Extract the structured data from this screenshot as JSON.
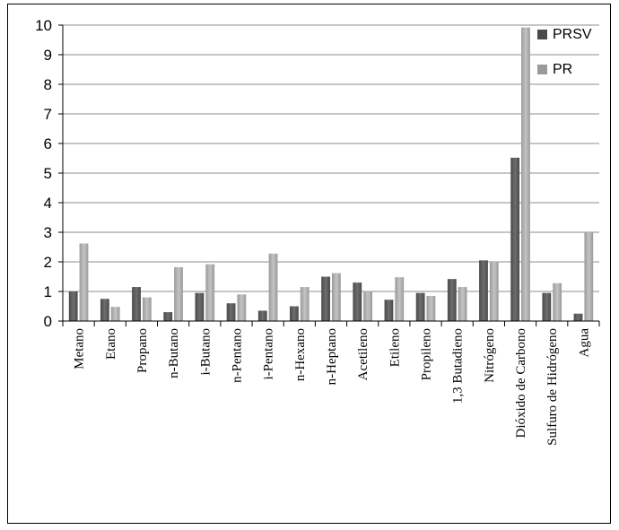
{
  "chart_data": {
    "type": "bar",
    "title": "",
    "xlabel": "",
    "ylabel": "",
    "ylim": [
      0,
      10
    ],
    "yticks": [
      0,
      1,
      2,
      3,
      4,
      5,
      6,
      7,
      8,
      9,
      10
    ],
    "grid": true,
    "legend_position": "top-right",
    "categories": [
      "Metano",
      "Etano",
      "Propano",
      "n-Butano",
      "i-Butano",
      "n-Pentano",
      "i-Pentano",
      "n-Hexano",
      "n-Heptano",
      "Acetileno",
      "Etileno",
      "Propileno",
      "1,3 Butadieno",
      "Nitrógeno",
      "Dióxido de Carbono",
      "Sulfuro de Hidrógeno",
      "Agua"
    ],
    "series": [
      {
        "name": "PRSV",
        "color": "#4a4a4a",
        "values": [
          1.0,
          0.75,
          1.15,
          0.3,
          0.95,
          0.6,
          0.35,
          0.5,
          1.5,
          1.3,
          0.72,
          0.95,
          1.42,
          2.05,
          5.52,
          0.95,
          0.25
        ]
      },
      {
        "name": "PR",
        "color": "#9a9a9a",
        "values": [
          2.62,
          0.48,
          0.8,
          1.82,
          1.92,
          0.9,
          2.28,
          1.15,
          1.62,
          1.0,
          1.48,
          0.85,
          1.15,
          2.0,
          9.92,
          1.28,
          3.0
        ]
      }
    ]
  }
}
